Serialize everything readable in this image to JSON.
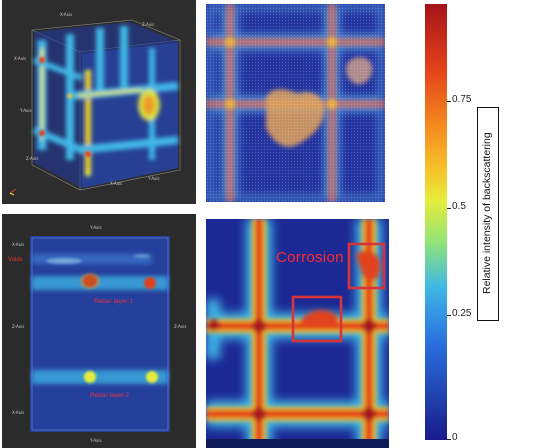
{
  "panels": {
    "top_left": {
      "axis_labels": [
        "X-Axis",
        "Z-Axis",
        "X-Axis",
        "Y-Axis",
        "Z-Axis",
        "X-Axis",
        "Y-Axis"
      ]
    },
    "bottom_left": {
      "axis_top": "Y-Axis",
      "axis_bottom": "Y-Axis",
      "axis_left_upper": "X-Axis",
      "axis_left_mid": "Z-Axis",
      "axis_right_mid": "Z-Axis",
      "axis_left_lower": "X-Axis",
      "voids_label": "Voids",
      "rebar1_label": "Rebar layer 1",
      "rebar2_label": "Rebar layer 2"
    },
    "bottom_right": {
      "corrosion_label": "Corrosion"
    }
  },
  "colorbar": {
    "title": "Relative intensity of backscattering",
    "ticks": [
      "0.75",
      "0.5",
      "0.25",
      "0"
    ],
    "colors": {
      "low": "#1a1a8c",
      "mid": "#8fe37a",
      "high": "#a6131a"
    }
  },
  "colors": {
    "box": "#e23030",
    "corrosion_text": "#ff2a2a"
  }
}
